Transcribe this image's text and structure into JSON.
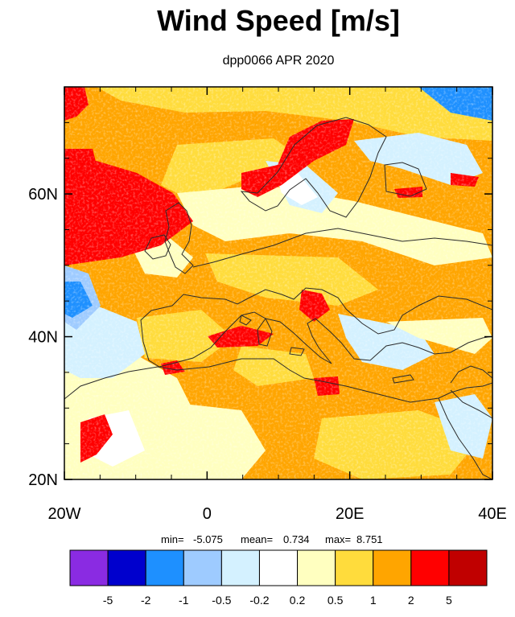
{
  "title": "Wind Speed [m/s]",
  "subtitle": "dpp0066 APR 2020",
  "map": {
    "lon_range": [
      -20,
      40
    ],
    "lat_range": [
      20,
      75
    ],
    "lon_ticks": [
      "20W",
      "0",
      "20E",
      "40E"
    ],
    "lat_ticks": [
      "20N",
      "40N",
      "60N"
    ]
  },
  "stats": {
    "min_label": "min=",
    "min_value": "-5.075",
    "mean_label": "mean=",
    "mean_value": "0.734",
    "max_label": "max=",
    "max_value": "8.751"
  },
  "colorbar": {
    "colors": [
      "#8a2be2",
      "#0000cd",
      "#1e90ff",
      "#9ecbff",
      "#d4f1ff",
      "#ffffff",
      "#ffffc0",
      "#ffdc3c",
      "#ffa500",
      "#ff0000",
      "#c00000"
    ],
    "labels": [
      "-5",
      "-2",
      "-1",
      "-0.5",
      "-0.2",
      "0.2",
      "0.5",
      "1",
      "2",
      "5"
    ]
  }
}
